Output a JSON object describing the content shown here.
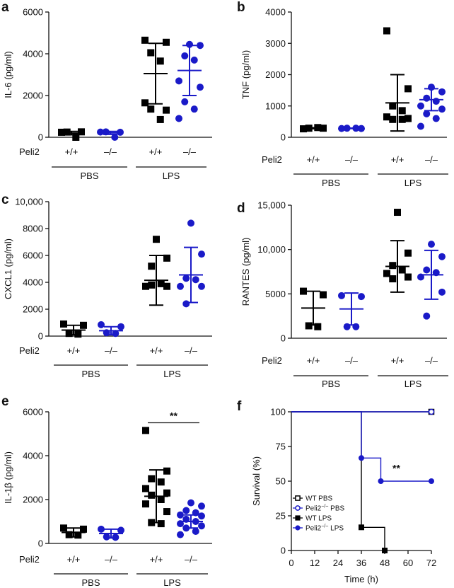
{
  "colors": {
    "wt": "#000000",
    "ko": "#1a1ac8",
    "axis": "#111111"
  },
  "panels": [
    {
      "label": "a",
      "chart_data": {
        "type": "scatter",
        "ylabel": "IL-6 (pg/ml)",
        "ylim": [
          0,
          6000
        ],
        "yticks": [
          0,
          2000,
          4000,
          6000
        ],
        "ytick_labels": [
          "0",
          "2000",
          "4000",
          "6000"
        ],
        "genotype_row_label": "Peli2",
        "groups": [
          {
            "treatment": "PBS",
            "genotype": "+/+",
            "color_key": "wt",
            "marker": "square",
            "values": [
              240,
              260,
              250,
              0
            ],
            "mean": 200,
            "sd_upper": 280,
            "sd_lower": 120
          },
          {
            "treatment": "PBS",
            "genotype": "–/–",
            "color_key": "ko",
            "marker": "circle",
            "values": [
              250,
              240,
              260,
              0
            ],
            "mean": 210,
            "sd_upper": 280,
            "sd_lower": 140
          },
          {
            "treatment": "LPS",
            "genotype": "+/+",
            "color_key": "wt",
            "marker": "square",
            "values": [
              4650,
              4550,
              4050,
              3650,
              1650,
              1300,
              1350,
              850
            ],
            "mean": 3050,
            "sd_upper": 4500,
            "sd_lower": 1600
          },
          {
            "treatment": "LPS",
            "genotype": "–/–",
            "color_key": "ko",
            "marker": "circle",
            "values": [
              4450,
              4400,
              3900,
              3700,
              2700,
              2400,
              1700,
              1350,
              900
            ],
            "mean": 3200,
            "sd_upper": 4400,
            "sd_lower": 2000
          }
        ],
        "treatment_labels": [
          "PBS",
          "LPS"
        ]
      }
    },
    {
      "label": "b",
      "chart_data": {
        "type": "scatter",
        "ylabel": "TNF (pg/ml)",
        "ylim": [
          0,
          4000
        ],
        "yticks": [
          0,
          1000,
          2000,
          3000,
          4000
        ],
        "ytick_labels": [
          "0",
          "1000",
          "2000",
          "3000",
          "4000"
        ],
        "genotype_row_label": "Peli2",
        "groups": [
          {
            "treatment": "PBS",
            "genotype": "+/+",
            "color_key": "wt",
            "marker": "square",
            "values": [
              270,
              290,
              290,
              310
            ],
            "mean": 290,
            "sd_upper": 305,
            "sd_lower": 275
          },
          {
            "treatment": "PBS",
            "genotype": "–/–",
            "color_key": "ko",
            "marker": "circle",
            "values": [
              280,
              280,
              290,
              290
            ],
            "mean": 285,
            "sd_upper": 290,
            "sd_lower": 280
          },
          {
            "treatment": "LPS",
            "genotype": "+/+",
            "color_key": "wt",
            "marker": "square",
            "values": [
              3400,
              1550,
              1000,
              850,
              650,
              600,
              570,
              570
            ],
            "mean": 1100,
            "sd_upper": 2000,
            "sd_lower": 200
          },
          {
            "treatment": "LPS",
            "genotype": "–/–",
            "color_key": "ko",
            "marker": "circle",
            "values": [
              1600,
              1450,
              1250,
              1150,
              1000,
              900,
              750,
              600,
              350
            ],
            "mean": 1200,
            "sd_upper": 1550,
            "sd_lower": 850
          }
        ],
        "treatment_labels": [
          "PBS",
          "LPS"
        ]
      }
    },
    {
      "label": "c",
      "chart_data": {
        "type": "scatter",
        "ylabel": "CXCL1 (pg/ml)",
        "ylim": [
          0,
          10000
        ],
        "yticks": [
          0,
          2000,
          4000,
          6000,
          8000,
          10000
        ],
        "ytick_labels": [
          "0",
          "2000",
          "4000",
          "6000",
          "8000",
          "10,000"
        ],
        "genotype_row_label": "Peli2",
        "groups": [
          {
            "treatment": "PBS",
            "genotype": "+/+",
            "color_key": "wt",
            "marker": "square",
            "values": [
              900,
              800,
              200,
              150
            ],
            "mean": 450,
            "sd_upper": 800,
            "sd_lower": 100
          },
          {
            "treatment": "PBS",
            "genotype": "–/–",
            "color_key": "ko",
            "marker": "circle",
            "values": [
              850,
              700,
              250,
              200
            ],
            "mean": 400,
            "sd_upper": 700,
            "sd_lower": 100
          },
          {
            "treatment": "LPS",
            "genotype": "+/+",
            "color_key": "wt",
            "marker": "square",
            "values": [
              7200,
              5800,
              5200,
              3900,
              3700,
              3700,
              3800
            ],
            "mean": 4150,
            "sd_upper": 6000,
            "sd_lower": 2300
          },
          {
            "treatment": "LPS",
            "genotype": "–/–",
            "color_key": "ko",
            "marker": "circle",
            "values": [
              8400,
              6100,
              4300,
              4200,
              3700,
              3700,
              2400
            ],
            "mean": 4550,
            "sd_upper": 6600,
            "sd_lower": 2500
          }
        ],
        "treatment_labels": [
          "PBS",
          "LPS"
        ]
      }
    },
    {
      "label": "d",
      "chart_data": {
        "type": "scatter",
        "ylabel": "RANTES (pg/ml)",
        "ylim": [
          0,
          15000
        ],
        "yticks": [
          0,
          5000,
          10000,
          15000
        ],
        "ytick_labels": [
          "0",
          "5000",
          "10,000",
          "15,000"
        ],
        "genotype_row_label": "Peli2",
        "groups": [
          {
            "treatment": "PBS",
            "genotype": "+/+",
            "color_key": "wt",
            "marker": "square",
            "values": [
              5300,
              4900,
              1400,
              1300
            ],
            "mean": 3400,
            "sd_upper": 5300,
            "sd_lower": 1500
          },
          {
            "treatment": "PBS",
            "genotype": "–/–",
            "color_key": "ko",
            "marker": "circle",
            "values": [
              4800,
              4700,
              1300,
              1300
            ],
            "mean": 3300,
            "sd_upper": 5100,
            "sd_lower": 1500
          },
          {
            "treatment": "LPS",
            "genotype": "+/+",
            "color_key": "wt",
            "marker": "square",
            "values": [
              14200,
              9600,
              8200,
              7700,
              7300,
              6900,
              6700
            ],
            "mean": 8100,
            "sd_upper": 11000,
            "sd_lower": 5200
          },
          {
            "treatment": "LPS",
            "genotype": "–/–",
            "color_key": "ko",
            "marker": "circle",
            "values": [
              10600,
              9200,
              7700,
              7400,
              6900,
              5200,
              2500
            ],
            "mean": 7150,
            "sd_upper": 9900,
            "sd_lower": 4400
          }
        ],
        "treatment_labels": [
          "PBS",
          "LPS"
        ]
      }
    },
    {
      "label": "e",
      "chart_data": {
        "type": "scatter",
        "ylabel": "IL-1β (pg/ml)",
        "ylim": [
          0,
          6000
        ],
        "yticks": [
          0,
          2000,
          4000,
          6000
        ],
        "ytick_labels": [
          "0",
          "2000",
          "4000",
          "6000"
        ],
        "genotype_row_label": "Peli2",
        "groups": [
          {
            "treatment": "PBS",
            "genotype": "+/+",
            "color_key": "wt",
            "marker": "square",
            "values": [
              700,
              650,
              400,
              380
            ],
            "mean": 500,
            "sd_upper": 700,
            "sd_lower": 300
          },
          {
            "treatment": "PBS",
            "genotype": "–/–",
            "color_key": "ko",
            "marker": "circle",
            "values": [
              650,
              600,
              300,
              280
            ],
            "mean": 450,
            "sd_upper": 650,
            "sd_lower": 250
          },
          {
            "treatment": "LPS",
            "genotype": "+/+",
            "color_key": "wt",
            "marker": "square",
            "values": [
              5150,
              3300,
              2950,
              2800,
              2500,
              2300,
              2200,
              2000,
              1800,
              1450,
              950,
              900
            ],
            "mean": 2150,
            "sd_upper": 3350,
            "sd_lower": 950
          },
          {
            "treatment": "LPS",
            "genotype": "–/–",
            "color_key": "ko",
            "marker": "circle",
            "values": [
              1850,
              1700,
              1500,
              1400,
              1300,
              1250,
              1100,
              1000,
              900,
              800,
              700,
              550,
              400
            ],
            "mean": 1000,
            "sd_upper": 1300,
            "sd_lower": 700
          }
        ],
        "treatment_labels": [
          "PBS",
          "LPS"
        ],
        "annotation": {
          "text": "**",
          "between_groups": [
            2,
            3
          ],
          "y_value": 5500
        }
      }
    },
    {
      "label": "f",
      "chart_data": {
        "type": "line",
        "xlabel": "Time (h)",
        "ylabel": "Survival (%)",
        "xlim": [
          0,
          72
        ],
        "ylim": [
          0,
          100
        ],
        "xticks": [
          0,
          12,
          24,
          36,
          48,
          60,
          72
        ],
        "yticks": [
          0,
          25,
          50,
          75,
          100
        ],
        "series": [
          {
            "name": "WT PBS",
            "legend_parts": [
              "WT PBS"
            ],
            "color_key": "wt",
            "marker": "open-square",
            "steps": [
              [
                0,
                100
              ],
              [
                72,
                100
              ]
            ],
            "markers": [
              [
                72,
                100
              ]
            ]
          },
          {
            "name": "Peli2⁻/⁻ PBS",
            "legend_parts": [
              "Peli2",
              "−/−",
              " PBS"
            ],
            "color_key": "ko",
            "marker": "open-circle",
            "steps": [
              [
                0,
                100
              ],
              [
                72,
                100
              ]
            ],
            "markers": [
              [
                72,
                100
              ]
            ]
          },
          {
            "name": "WT LPS",
            "legend_parts": [
              "WT LPS"
            ],
            "color_key": "wt",
            "marker": "filled-square",
            "steps": [
              [
                0,
                100
              ],
              [
                36,
                100
              ],
              [
                36,
                16.7
              ],
              [
                48,
                16.7
              ],
              [
                48,
                0
              ]
            ],
            "markers": [
              [
                36,
                16.7
              ],
              [
                48,
                0
              ]
            ]
          },
          {
            "name": "Peli2⁻/⁻ LPS",
            "legend_parts": [
              "Peli2",
              "−/−",
              " LPS"
            ],
            "color_key": "ko",
            "marker": "filled-circle",
            "steps": [
              [
                0,
                100
              ],
              [
                36,
                100
              ],
              [
                36,
                66.7
              ],
              [
                46,
                66.7
              ],
              [
                46,
                50
              ],
              [
                72,
                50
              ]
            ],
            "markers": [
              [
                36,
                66.7
              ],
              [
                46,
                50
              ],
              [
                72,
                50
              ]
            ]
          }
        ],
        "annotation": {
          "text": "**",
          "x": 54,
          "y": 57
        },
        "legend_position": "bottom-left"
      }
    }
  ]
}
